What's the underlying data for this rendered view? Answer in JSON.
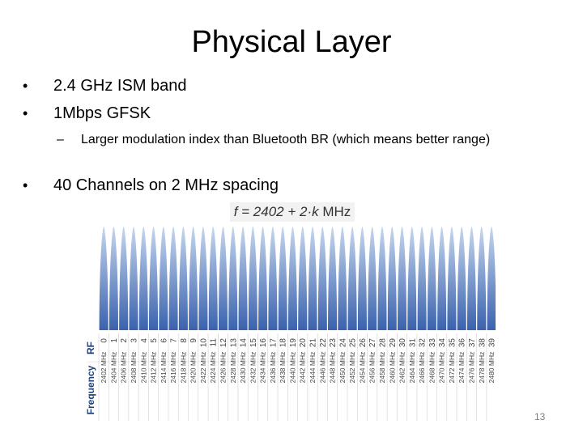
{
  "slide": {
    "title": "Physical Layer",
    "bullets": [
      "2.4 GHz ISM band",
      "1Mbps GFSK",
      "40 Channels on 2 MHz spacing"
    ],
    "sub_bullet": "Larger modulation index than Bluetooth BR (which means better range)",
    "bullet_marker": "•",
    "sub_marker": "–",
    "page_number": "13"
  },
  "chart_data": {
    "type": "bar",
    "formula_lhs": "f = 2402 + 2·k",
    "formula_unit": "MHz",
    "row_labels": [
      "RF",
      "Frequency"
    ],
    "rf_channels": [
      "0",
      "1",
      "2",
      "3",
      "4",
      "5",
      "6",
      "7",
      "8",
      "9",
      "10",
      "11",
      "12",
      "13",
      "14",
      "15",
      "16",
      "17",
      "18",
      "19",
      "20",
      "21",
      "22",
      "23",
      "24",
      "25",
      "26",
      "27",
      "28",
      "29",
      "30",
      "31",
      "32",
      "33",
      "34",
      "35",
      "36",
      "37",
      "38",
      "39"
    ],
    "frequencies": [
      "2402 MHz",
      "2404 MHz",
      "2406 MHz",
      "2408 MHz",
      "2410 MHz",
      "2412 MHz",
      "2414 MHz",
      "2416 MHz",
      "2418 MHz",
      "2420 MHz",
      "2422 MHz",
      "2424 MHz",
      "2426 MHz",
      "2428 MHz",
      "2430 MHz",
      "2432 MHz",
      "2434 MHz",
      "2436 MHz",
      "2438 MHz",
      "2440 MHz",
      "2442 MHz",
      "2444 MHz",
      "2446 MHz",
      "2448 MHz",
      "2450 MHz",
      "2452 MHz",
      "2454 MHz",
      "2456 MHz",
      "2458 MHz",
      "2460 MHz",
      "2462 MHz",
      "2464 MHz",
      "2466 MHz",
      "2468 MHz",
      "2470 MHz",
      "2472 MHz",
      "2474 MHz",
      "2476 MHz",
      "2478 MHz",
      "2480 MHz"
    ],
    "colors": {
      "lobe_top": "#c5d6ee",
      "lobe_bottom": "#3a62ad",
      "label_text": "#444444",
      "row_label_text": "#1f3f7a",
      "grid": "#d0d0d0"
    }
  }
}
